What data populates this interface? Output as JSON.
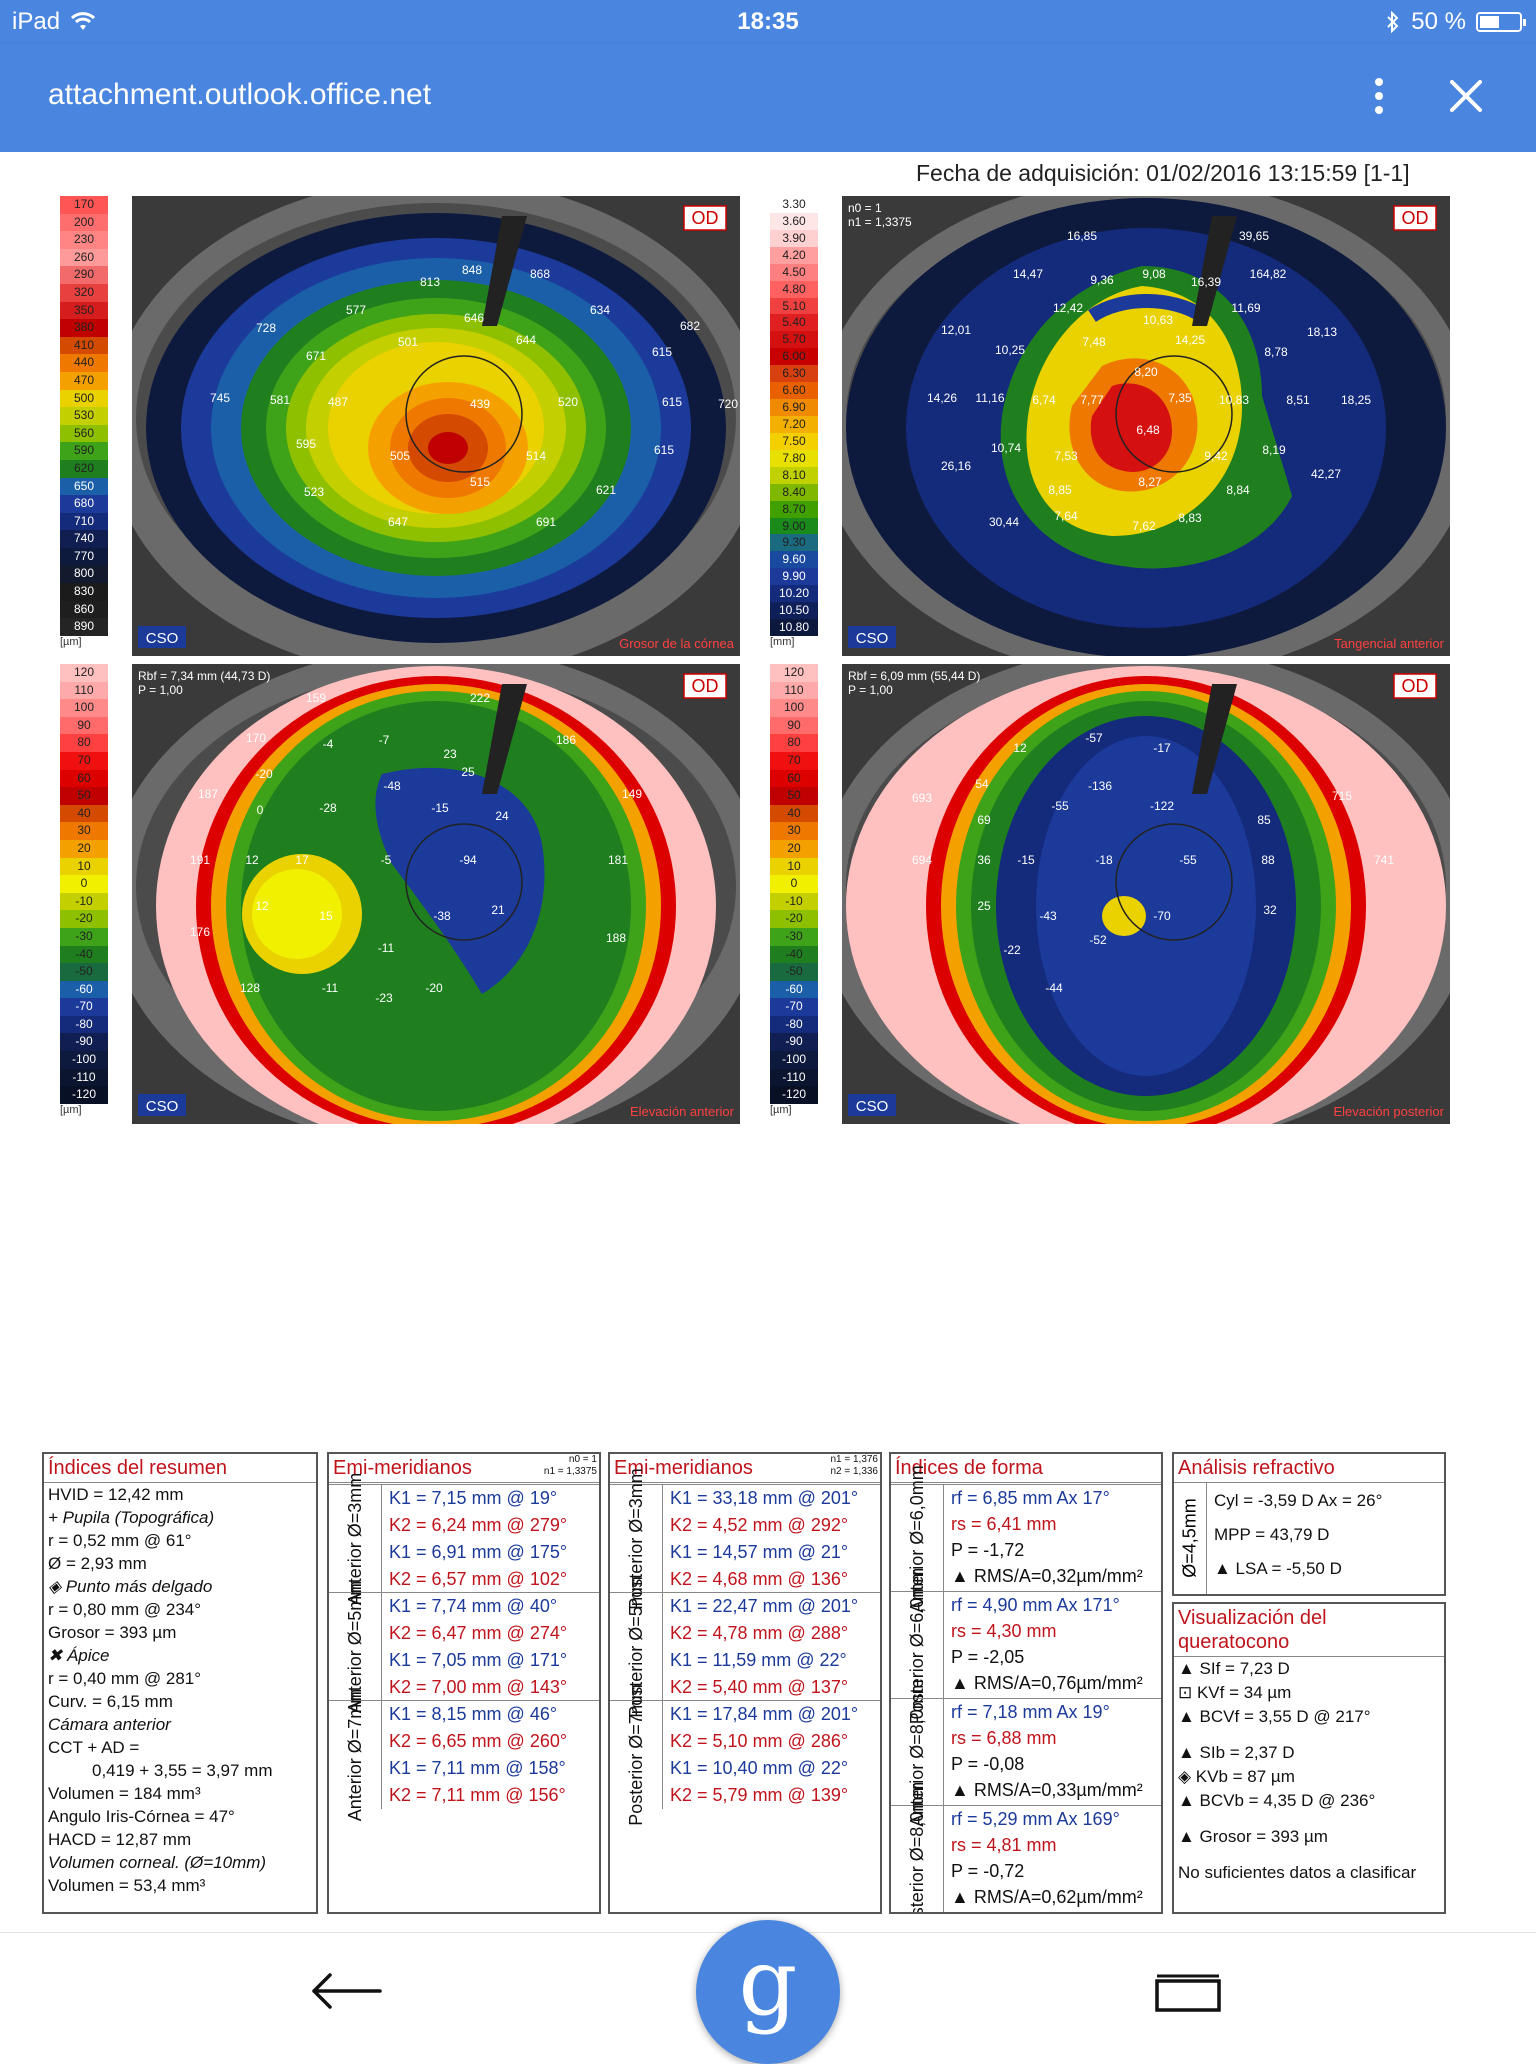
{
  "status_bar": {
    "device": "iPad",
    "time": "18:35",
    "battery": "50 %",
    "battery_level": 0.5
  },
  "app_bar": {
    "url": "attachment.outlook.office.net",
    "menu_icon": "more-vert-icon",
    "close_icon": "close-icon"
  },
  "document": {
    "acquisition": "Fecha de adquisición: 01/02/2016 13:15:59 [1-1]",
    "eye": "OD",
    "logo": "CSO",
    "maps": [
      {
        "id": "thickness",
        "caption": "Grosor de la córnea",
        "unit": "[µm]",
        "scale": [
          "170",
          "200",
          "230",
          "260",
          "290",
          "320",
          "350",
          "380",
          "410",
          "440",
          "470",
          "500",
          "530",
          "560",
          "590",
          "620",
          "650",
          "680",
          "710",
          "740",
          "770",
          "800",
          "830",
          "860",
          "890"
        ],
        "labels": [
          "848",
          "868",
          "813",
          "577",
          "646",
          "634",
          "728",
          "671",
          "501",
          "644",
          "615",
          "682",
          "745",
          "581",
          "487",
          "439",
          "520",
          "615",
          "720",
          "595",
          "505",
          "514",
          "615",
          "523",
          "515",
          "621",
          "647",
          "691"
        ]
      },
      {
        "id": "tangential",
        "caption": "Tangencial anterior",
        "unit": "[mm]",
        "header": [
          "n0 = 1",
          "n1 = 1,3375"
        ],
        "scale": [
          "3.30",
          "3.60",
          "3.90",
          "4.20",
          "4.50",
          "4.80",
          "5.10",
          "5.40",
          "5.70",
          "6.00",
          "6.30",
          "6.60",
          "6.90",
          "7.20",
          "7.50",
          "7.80",
          "8.10",
          "8.40",
          "8.70",
          "9.00",
          "9.30",
          "9.60",
          "9.90",
          "10.20",
          "10.50",
          "10.80"
        ],
        "labels": [
          "16,85",
          "39,65",
          "14,47",
          "9,36",
          "9,08",
          "16,39",
          "164,82",
          "12,42",
          "10,63",
          "11,69",
          "12,01",
          "10,25",
          "7,48",
          "14,25",
          "8,78",
          "18,13",
          "8,20",
          "14,26",
          "11,16",
          "6,74",
          "7,77",
          "7,35",
          "10,83",
          "8,51",
          "18,25",
          "6,48",
          "10,74",
          "7,53",
          "9,42",
          "8,19",
          "26,16",
          "8,27",
          "42,27",
          "8,85",
          "8,84",
          "30,44",
          "7,64",
          "7,62",
          "8,83"
        ]
      },
      {
        "id": "anterior-elevation",
        "caption": "Elevación anterior",
        "unit": "[µm]",
        "header": [
          "Rbf = 7,34 mm (44,73 D)",
          "P = 1,00"
        ],
        "scale": [
          "120",
          "110",
          "100",
          "90",
          "80",
          "70",
          "60",
          "50",
          "40",
          "30",
          "20",
          "10",
          "0",
          "-10",
          "-20",
          "-30",
          "-40",
          "-50",
          "-60",
          "-70",
          "-80",
          "-90",
          "-100",
          "-110",
          "-120"
        ],
        "labels": [
          "159",
          "222",
          "170",
          "-4",
          "-7",
          "23",
          "186",
          "-20",
          "-48",
          "25",
          "187",
          "0",
          "-28",
          "-15",
          "149",
          "24",
          "191",
          "12",
          "17",
          "-5",
          "-94",
          "181",
          "12",
          "15",
          "21",
          "-38",
          "176",
          "-11",
          "188",
          "128",
          "-11",
          "-23",
          "-20"
        ]
      },
      {
        "id": "posterior-elevation",
        "caption": "Elevación posterior",
        "unit": "[µm]",
        "header": [
          "Rbf = 6,09 mm (55,44 D)",
          "P = 1,00"
        ],
        "scale": [
          "120",
          "110",
          "100",
          "90",
          "80",
          "70",
          "60",
          "50",
          "40",
          "30",
          "20",
          "10",
          "0",
          "-10",
          "-20",
          "-30",
          "-40",
          "-50",
          "-60",
          "-70",
          "-80",
          "-90",
          "-100",
          "-110",
          "-120"
        ],
        "labels": [
          "-57",
          "12",
          "-17",
          "54",
          "-136",
          "693",
          "-55",
          "-122",
          "715",
          "69",
          "85",
          "694",
          "36",
          "-15",
          "-18",
          "-55",
          "88",
          "741",
          "25",
          "-43",
          "-70",
          "32",
          "-22",
          "-52",
          "-44"
        ]
      }
    ]
  },
  "summary": {
    "title": "Índices del resumen",
    "lines": [
      "HVID = 12,42 mm",
      "+ Pupila (Topográfica)",
      "r = 0,52 mm @ 61°",
      "Ø = 2,93 mm",
      "◈ Punto más delgado",
      "r = 0,80 mm @ 234°",
      "Grosor = 393 µm",
      "✖ Ápice",
      "r = 0,40 mm @ 281°",
      "Curv. = 6,15 mm",
      "Cámara anterior",
      "CCT + AD =",
      "0,419 + 3,55 = 3,97 mm",
      "Volumen = 184 mm³",
      "Angulo Iris-Córnea = 47°",
      "HACD = 12,87 mm",
      "Volumen corneal. (Ø=10mm)",
      "Volumen = 53,4 mm³"
    ]
  },
  "emi_anterior": {
    "title": "Emi-meridianos",
    "n_info": [
      "n0 = 1",
      "n1 = 1,3375"
    ],
    "rows": [
      {
        "label": "Anterior Ø=3mm",
        "values": [
          "K1 = 7,15 mm  @ 19°",
          "K2 = 6,24 mm  @ 279°",
          "K1 = 6,91 mm  @ 175°",
          "K2 = 6,57 mm  @ 102°"
        ]
      },
      {
        "label": "Anterior Ø=5mm",
        "values": [
          "K1 = 7,74 mm  @ 40°",
          "K2 = 6,47 mm  @ 274°",
          "K1 = 7,05 mm  @ 171°",
          "K2 = 7,00 mm  @ 143°"
        ]
      },
      {
        "label": "Anterior Ø=7mm",
        "values": [
          "K1 = 8,15 mm  @ 46°",
          "K2 = 6,65 mm  @ 260°",
          "K1 = 7,11 mm  @ 158°",
          "K2 = 7,11 mm  @ 156°"
        ]
      }
    ]
  },
  "emi_posterior": {
    "title": "Emi-meridianos",
    "n_info": [
      "n1 = 1,376",
      "n2 = 1,336"
    ],
    "rows": [
      {
        "label": "Posterior Ø=3mm",
        "values": [
          "K1 = 33,18 mm  @ 201°",
          "K2 = 4,52 mm  @ 292°",
          "K1 = 14,57 mm  @ 21°",
          "K2 = 4,68 mm  @ 136°"
        ]
      },
      {
        "label": "Posterior Ø=5mm",
        "values": [
          "K1 = 22,47 mm  @ 201°",
          "K2 = 4,78 mm  @ 288°",
          "K1 = 11,59 mm  @ 22°",
          "K2 = 5,40 mm  @ 137°"
        ]
      },
      {
        "label": "Posterior Ø=7mm",
        "values": [
          "K1 = 17,84 mm  @ 201°",
          "K2 = 5,10 mm  @ 286°",
          "K1 = 10,40 mm  @ 22°",
          "K2 = 5,79 mm  @ 139°"
        ]
      }
    ]
  },
  "shape": {
    "title": "Índices de forma",
    "rows": [
      {
        "label": "Anterior Ø=6,0mm",
        "values": [
          "rf = 6,85 mm Ax 17°",
          "rs = 6,41 mm",
          "P = -1,72",
          "▲ RMS/A=0,32µm/mm²"
        ]
      },
      {
        "label": "Posterior Ø=6,0mm",
        "values": [
          "rf = 4,90 mm Ax 171°",
          "rs = 4,30 mm",
          "P = -2,05",
          "▲ RMS/A=0,76µm/mm²"
        ]
      },
      {
        "label": "Anterior Ø=8,0mm",
        "values": [
          "rf = 7,18 mm Ax 19°",
          "rs = 6,88 mm",
          "P = -0,08",
          "▲ RMS/A=0,33µm/mm²"
        ]
      },
      {
        "label": "Posterior Ø=8,0mm",
        "values": [
          "rf = 5,29 mm Ax 169°",
          "rs = 4,81 mm",
          "P = -0,72",
          "▲ RMS/A=0,62µm/mm²"
        ]
      }
    ]
  },
  "refractive": {
    "title": "Análisis refractivo",
    "label": "Ø=4,5mm",
    "lines": [
      "Cyl = -3,59 D Ax = 26°",
      "MPP = 43,79 D",
      "▲ LSA = -5,50 D"
    ]
  },
  "keratoconus": {
    "title_line1": "Visualización del",
    "title_line2": "queratocono",
    "lines": [
      "▲ SIf = 7,23 D",
      "⊡ KVf = 34 µm",
      "▲ BCVf = 3,55 D @ 217°",
      "▲ SIb = 2,37 D",
      "◈ KVb = 87 µm",
      "▲ BCVb = 4,35 D @ 236°",
      "▲ Grosor = 393 µm",
      "No suficientes datos a clasificar"
    ]
  },
  "nav": {
    "back_icon": "back-arrow-icon",
    "google_label": "g",
    "tabs_icon": "tabs-icon"
  },
  "colors": {
    "accent": "#4a86e0",
    "heading_red": "#c0141c",
    "value_blue": "#1b3a9a",
    "thickness_scale": [
      "#ff5555",
      "#ff6e6e",
      "#ff8585",
      "#ff9a9a",
      "#f36a6a",
      "#e83f3f",
      "#d61d1d",
      "#c00000",
      "#d44a00",
      "#ef7800",
      "#f4a100",
      "#ead100",
      "#c4cf00",
      "#8ec000",
      "#3fa31a",
      "#1f7f1f",
      "#1a5fa8",
      "#1b3a9a",
      "#142a7a",
      "#111e52",
      "#0e1a3d",
      "#131a2e",
      "#1b1b1b",
      "#1e1e1e",
      "#242424"
    ],
    "tangential_scale": [
      "#ffffff",
      "#ffe6e6",
      "#ffd0d0",
      "#ff9f9f",
      "#ff8080",
      "#ff6060",
      "#f04040",
      "#e02020",
      "#d41010",
      "#c80000",
      "#d84010",
      "#e86000",
      "#f08a00",
      "#f4b000",
      "#f4d000",
      "#e8e000",
      "#c0d000",
      "#80b800",
      "#40a000",
      "#1a8a1a",
      "#1a6a80",
      "#1a4aa0",
      "#1b3a9a",
      "#142a7a",
      "#0f1f5a",
      "#0d183f"
    ],
    "elevation_scale": [
      "#ffc0c0",
      "#ffaaaa",
      "#ff8a8a",
      "#ff6a6a",
      "#ff4040",
      "#f01010",
      "#dc0000",
      "#c00000",
      "#d44a00",
      "#ef7800",
      "#f4a100",
      "#ead100",
      "#f0f000",
      "#c4cf00",
      "#8ec000",
      "#3fa31a",
      "#1f7f1f",
      "#1a6a40",
      "#1a5fa8",
      "#1b3a9a",
      "#142a7a",
      "#111e52",
      "#0e1a3d",
      "#0b1530",
      "#081025"
    ]
  }
}
